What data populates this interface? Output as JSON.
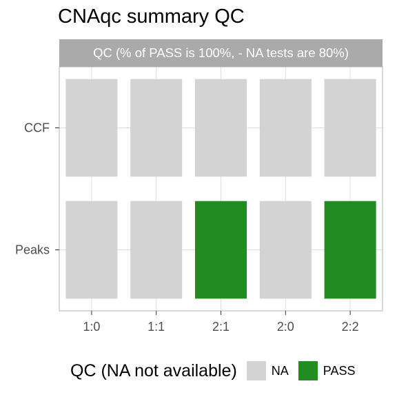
{
  "chart_data": {
    "type": "heatmap",
    "title": "CNAqc summary QC",
    "facet_strip": "QC (% of PASS is 100%, - NA tests are 80%)",
    "x_categories": [
      "1:0",
      "1:1",
      "2:1",
      "2:0",
      "2:2"
    ],
    "y_categories": [
      "CCF",
      "Peaks"
    ],
    "cells": [
      {
        "x": "1:0",
        "y": "CCF",
        "value": "NA"
      },
      {
        "x": "1:1",
        "y": "CCF",
        "value": "NA"
      },
      {
        "x": "2:1",
        "y": "CCF",
        "value": "NA"
      },
      {
        "x": "2:0",
        "y": "CCF",
        "value": "NA"
      },
      {
        "x": "2:2",
        "y": "CCF",
        "value": "NA"
      },
      {
        "x": "1:0",
        "y": "Peaks",
        "value": "NA"
      },
      {
        "x": "1:1",
        "y": "Peaks",
        "value": "NA"
      },
      {
        "x": "2:1",
        "y": "Peaks",
        "value": "PASS"
      },
      {
        "x": "2:0",
        "y": "Peaks",
        "value": "NA"
      },
      {
        "x": "2:2",
        "y": "Peaks",
        "value": "PASS"
      }
    ],
    "legend": {
      "title": "QC (NA not available)",
      "position": "bottom",
      "items": [
        {
          "label": "NA",
          "color": "#d3d3d3"
        },
        {
          "label": "PASS",
          "color": "#228b22"
        }
      ]
    },
    "grid": true
  }
}
